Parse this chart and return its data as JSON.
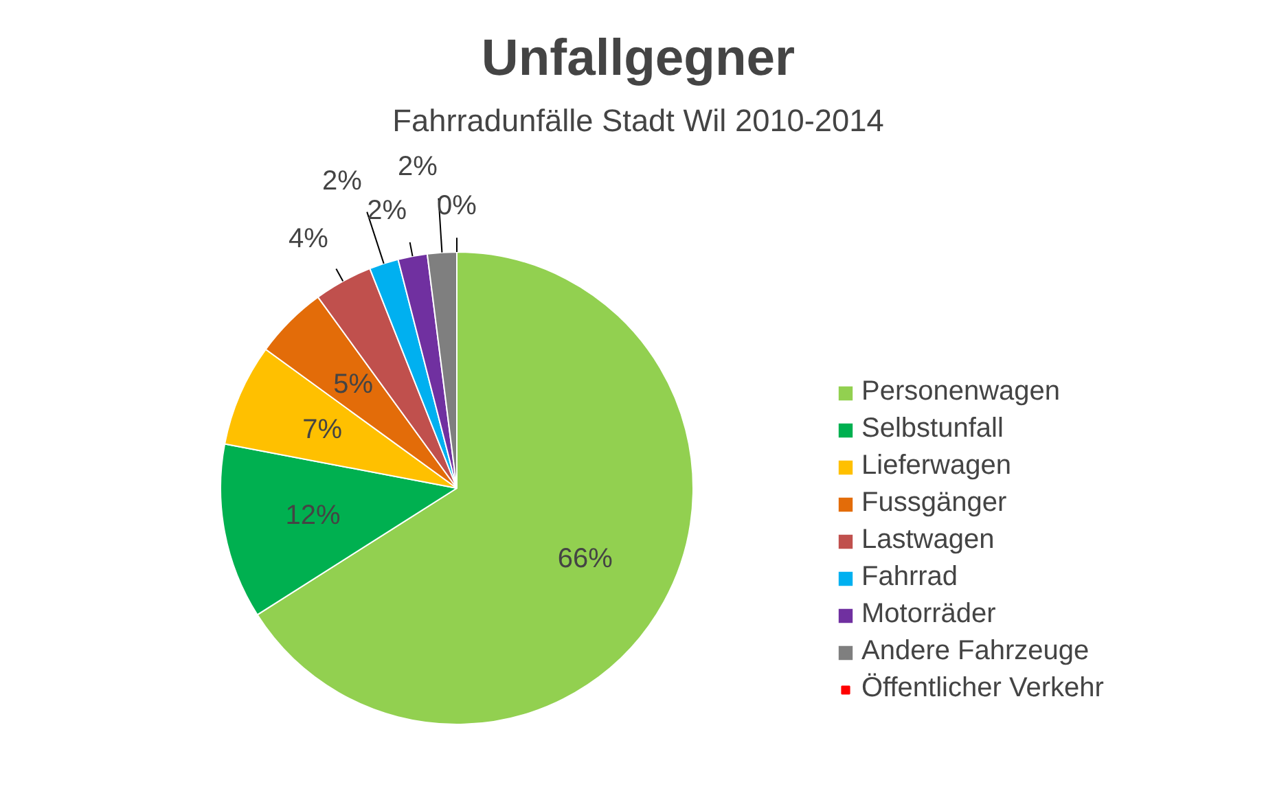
{
  "chart_data": {
    "type": "pie",
    "title": "Unfallgegner",
    "subtitle": "Fahrradunfälle Stadt Wil 2010-2014",
    "categories": [
      "Personenwagen",
      "Selbstunfall",
      "Lieferwagen",
      "Fussgänger",
      "Lastwagen",
      "Fahrrad",
      "Motorräder",
      "Andere Fahrzeuge",
      "Öffentlicher Verkehr"
    ],
    "values": [
      66,
      12,
      7,
      5,
      4,
      2,
      2,
      2,
      0
    ],
    "colors": [
      "#92d050",
      "#00b050",
      "#ffc000",
      "#e36c09",
      "#c0504d",
      "#00b0f0",
      "#7030a0",
      "#7f7f7f",
      "#ff0000"
    ],
    "value_labels": [
      "66%",
      "12%",
      "7%",
      "5%",
      "4%",
      "2%",
      "2%",
      "2%",
      "0%"
    ],
    "legend": "right"
  }
}
